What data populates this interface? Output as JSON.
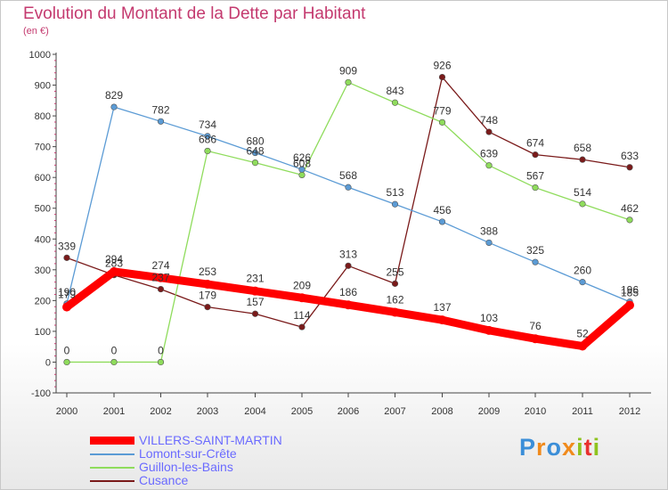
{
  "header": {
    "title": "Evolution du Montant de la Dette par Habitant",
    "subtitle": "(en €)"
  },
  "brand": {
    "text": "Proxiti",
    "letters": [
      "P",
      "r",
      "o",
      "x",
      "i",
      "t",
      "i"
    ],
    "colors": [
      "#3b8ed8",
      "#f08a1c",
      "#3b8ed8",
      "#f08a1c",
      "#8fc31f",
      "#e8312f",
      "#8fc31f"
    ]
  },
  "chart_data": {
    "type": "line",
    "x": [
      "2000",
      "2001",
      "2002",
      "2003",
      "2004",
      "2005",
      "2006",
      "2007",
      "2008",
      "2009",
      "2010",
      "2011",
      "2012"
    ],
    "ylim": [
      -100,
      1000
    ],
    "yticks": [
      "-100",
      "0",
      "100",
      "200",
      "300",
      "400",
      "500",
      "600",
      "700",
      "800",
      "900",
      "1000"
    ],
    "grid": false,
    "legend_position": "bottom-left",
    "series": [
      {
        "name": "VILLERS-SAINT-MARTIN",
        "color": "#ff0000",
        "values": [
          179,
          294,
          274,
          253,
          231,
          209,
          186,
          162,
          137,
          103,
          76,
          52,
          185
        ],
        "labels": [
          "179",
          "294",
          "274",
          "253",
          "231",
          "209",
          "186",
          "162",
          "137",
          "103",
          "76",
          "52",
          "185"
        ]
      },
      {
        "name": "Lomont-sur-Crête",
        "color": "#5b9bd5",
        "values": [
          190,
          829,
          782,
          734,
          680,
          626,
          568,
          513,
          456,
          388,
          325,
          260,
          196
        ],
        "labels": [
          "190",
          "829",
          "782",
          "734",
          "680",
          "626",
          "568",
          "513",
          "456",
          "388",
          "325",
          "260",
          "196"
        ]
      },
      {
        "name": "Guillon-les-Bains",
        "color": "#8fdc5c",
        "values": [
          0,
          0,
          0,
          686,
          648,
          608,
          909,
          843,
          779,
          639,
          567,
          514,
          462
        ],
        "labels": [
          "0",
          "0",
          "0",
          "686",
          "648",
          "608",
          "909",
          "843",
          "779",
          "639",
          "567",
          "514",
          "462"
        ]
      },
      {
        "name": "Cusance",
        "color": "#7a1a1a",
        "values": [
          339,
          283,
          237,
          179,
          157,
          114,
          313,
          255,
          926,
          748,
          674,
          658,
          633
        ],
        "labels": [
          "339",
          "283",
          "237",
          "179",
          "157",
          "114",
          "313",
          "255",
          "926",
          "748",
          "674",
          "658",
          "633"
        ]
      }
    ]
  }
}
